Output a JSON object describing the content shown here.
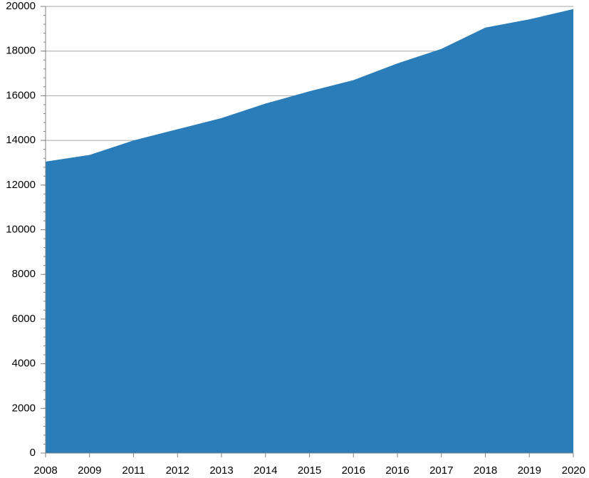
{
  "chart_data": {
    "type": "area",
    "categories": [
      "2008",
      "2009",
      "2011",
      "2012",
      "2013",
      "2014",
      "2015",
      "2016",
      "2016",
      "2017",
      "2018",
      "2019",
      "2020"
    ],
    "series": [
      {
        "values": [
          13050,
          13350,
          14000,
          14500,
          15000,
          15650,
          16200,
          16700,
          17450,
          18100,
          19050,
          19420,
          19880
        ]
      }
    ],
    "title": "",
    "xlabel": "",
    "ylabel": "",
    "ylim": [
      0,
      20000
    ],
    "yticks": [
      "0",
      "2000",
      "4000",
      "6000",
      "8000",
      "10000",
      "12000",
      "14000",
      "16000",
      "18000",
      "20000"
    ],
    "grid": true,
    "legend": "none",
    "colors": {
      "area": "#2a7db8",
      "grid": "#a6a6a6",
      "axis": "#808080"
    }
  }
}
